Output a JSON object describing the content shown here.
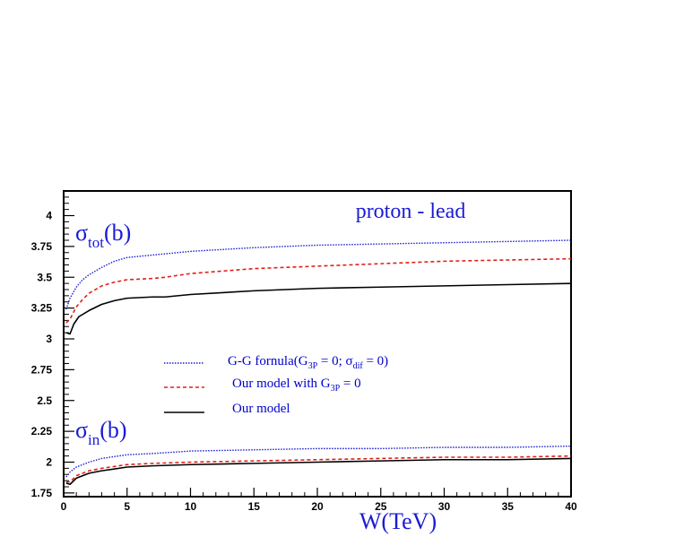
{
  "chart_data": {
    "type": "line",
    "title": "proton - lead",
    "xlabel": "W(TeV)",
    "ylabel": "",
    "xlim": [
      0,
      40
    ],
    "ylim": [
      1.72,
      4.2
    ],
    "x_ticks": [
      0,
      5,
      10,
      15,
      20,
      25,
      30,
      35,
      40
    ],
    "y_ticks": [
      1.75,
      2,
      2.25,
      2.5,
      2.75,
      3,
      3.25,
      3.5,
      3.75,
      4
    ],
    "grid": false,
    "legend_position": "center-left",
    "colors": {
      "gg": "#1a1ad6",
      "g3p": "#e0201a",
      "model": "#000000"
    },
    "annotations": {
      "sigma_tot": {
        "main": "σ",
        "sub": "tot",
        "rest": "(b)"
      },
      "sigma_in": {
        "main": "σ",
        "sub": "in",
        "rest": "(b)"
      }
    },
    "legend": [
      {
        "key": "gg",
        "style": "dotted",
        "text_pre": "G-G fornula(G",
        "sub1": "3P",
        "text_mid": " = 0; σ",
        "sub2": "dif",
        "text_post": " = 0)"
      },
      {
        "key": "g3p",
        "style": "dashed",
        "text_pre": "Our model with G",
        "sub1": "3P",
        "text_mid": " = 0",
        "sub2": "",
        "text_post": ""
      },
      {
        "key": "model",
        "style": "solid",
        "text_pre": "Our model",
        "sub1": "",
        "text_mid": "",
        "sub2": "",
        "text_post": ""
      }
    ],
    "series": [
      {
        "group": "sigma_tot",
        "key": "gg",
        "x": [
          0.2,
          0.5,
          1,
          1.5,
          2,
          3,
          4,
          5,
          7,
          10,
          15,
          20,
          25,
          30,
          35,
          40
        ],
        "y": [
          3.24,
          3.33,
          3.42,
          3.48,
          3.52,
          3.58,
          3.63,
          3.66,
          3.68,
          3.71,
          3.74,
          3.76,
          3.77,
          3.78,
          3.79,
          3.8
        ]
      },
      {
        "group": "sigma_tot",
        "key": "g3p",
        "x": [
          0.2,
          0.5,
          1,
          1.5,
          2,
          3,
          4,
          5,
          7,
          8,
          10,
          15,
          20,
          25,
          30,
          35,
          40
        ],
        "y": [
          3.13,
          3.16,
          3.26,
          3.32,
          3.37,
          3.43,
          3.46,
          3.48,
          3.49,
          3.5,
          3.53,
          3.57,
          3.59,
          3.61,
          3.63,
          3.64,
          3.65
        ]
      },
      {
        "group": "sigma_tot",
        "key": "model",
        "x": [
          0.2,
          0.5,
          0.8,
          1.2,
          2,
          3,
          4,
          5,
          7,
          8,
          10,
          15,
          20,
          25,
          30,
          35,
          40
        ],
        "y": [
          3.05,
          3.04,
          3.12,
          3.18,
          3.23,
          3.28,
          3.31,
          3.33,
          3.34,
          3.34,
          3.36,
          3.39,
          3.41,
          3.42,
          3.43,
          3.44,
          3.45
        ]
      },
      {
        "group": "sigma_in",
        "key": "gg",
        "x": [
          0.2,
          0.5,
          1,
          2,
          3,
          5,
          7,
          10,
          15,
          20,
          25,
          30,
          35,
          40
        ],
        "y": [
          1.88,
          1.92,
          1.96,
          2.0,
          2.03,
          2.06,
          2.07,
          2.09,
          2.1,
          2.11,
          2.11,
          2.12,
          2.12,
          2.13
        ]
      },
      {
        "group": "sigma_in",
        "key": "g3p",
        "x": [
          0.2,
          0.5,
          1,
          2,
          3,
          5,
          7,
          10,
          15,
          20,
          25,
          30,
          35,
          40
        ],
        "y": [
          1.84,
          1.84,
          1.89,
          1.93,
          1.95,
          1.98,
          1.99,
          2.0,
          2.01,
          2.02,
          2.03,
          2.04,
          2.04,
          2.05
        ]
      },
      {
        "group": "sigma_in",
        "key": "model",
        "x": [
          0.2,
          0.5,
          1,
          2,
          3,
          5,
          7,
          10,
          15,
          20,
          25,
          30,
          35,
          40
        ],
        "y": [
          1.83,
          1.82,
          1.87,
          1.91,
          1.93,
          1.96,
          1.97,
          1.98,
          1.99,
          2.0,
          2.01,
          2.02,
          2.02,
          2.03
        ]
      }
    ]
  }
}
